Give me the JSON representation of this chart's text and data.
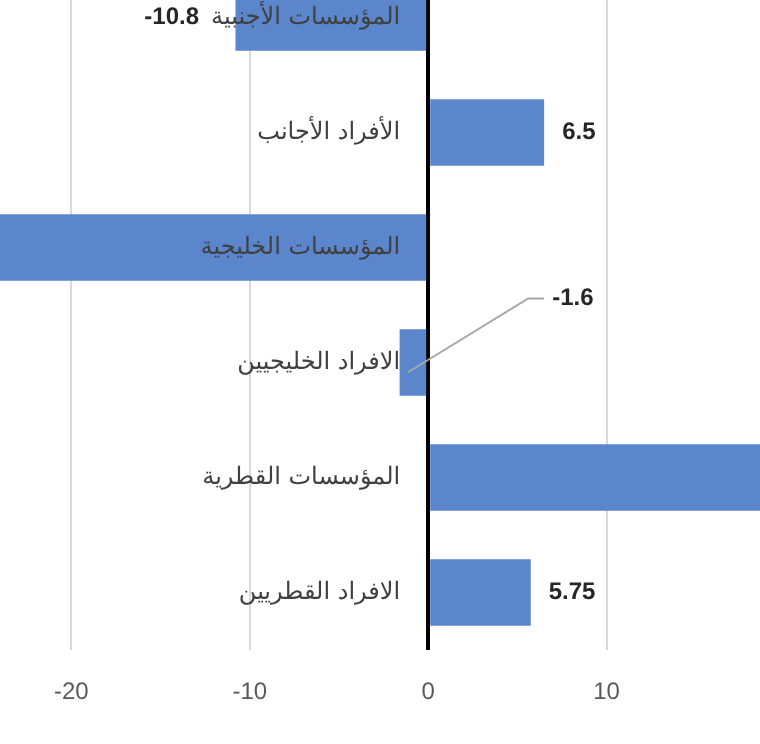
{
  "chart_data": {
    "type": "bar",
    "orientation": "horizontal",
    "categories": [
      "المؤسسات الأجنبية",
      "الأفراد الأجانب",
      "المؤسسات الخليجية",
      "الافراد الخليجيين",
      "المؤسسات القطرية",
      "الافراد القطريين"
    ],
    "values": [
      -10.8,
      6.5,
      -24,
      -1.6,
      18.6,
      5.75
    ],
    "value_labels": [
      "-10.8",
      "6.5",
      null,
      "-1.6",
      null,
      "5.75"
    ],
    "color": "#5b86cc",
    "xlim": [
      -24,
      18.6
    ],
    "xticks": [
      -20,
      -10,
      0,
      10
    ],
    "grid": "x",
    "legend": false
  }
}
